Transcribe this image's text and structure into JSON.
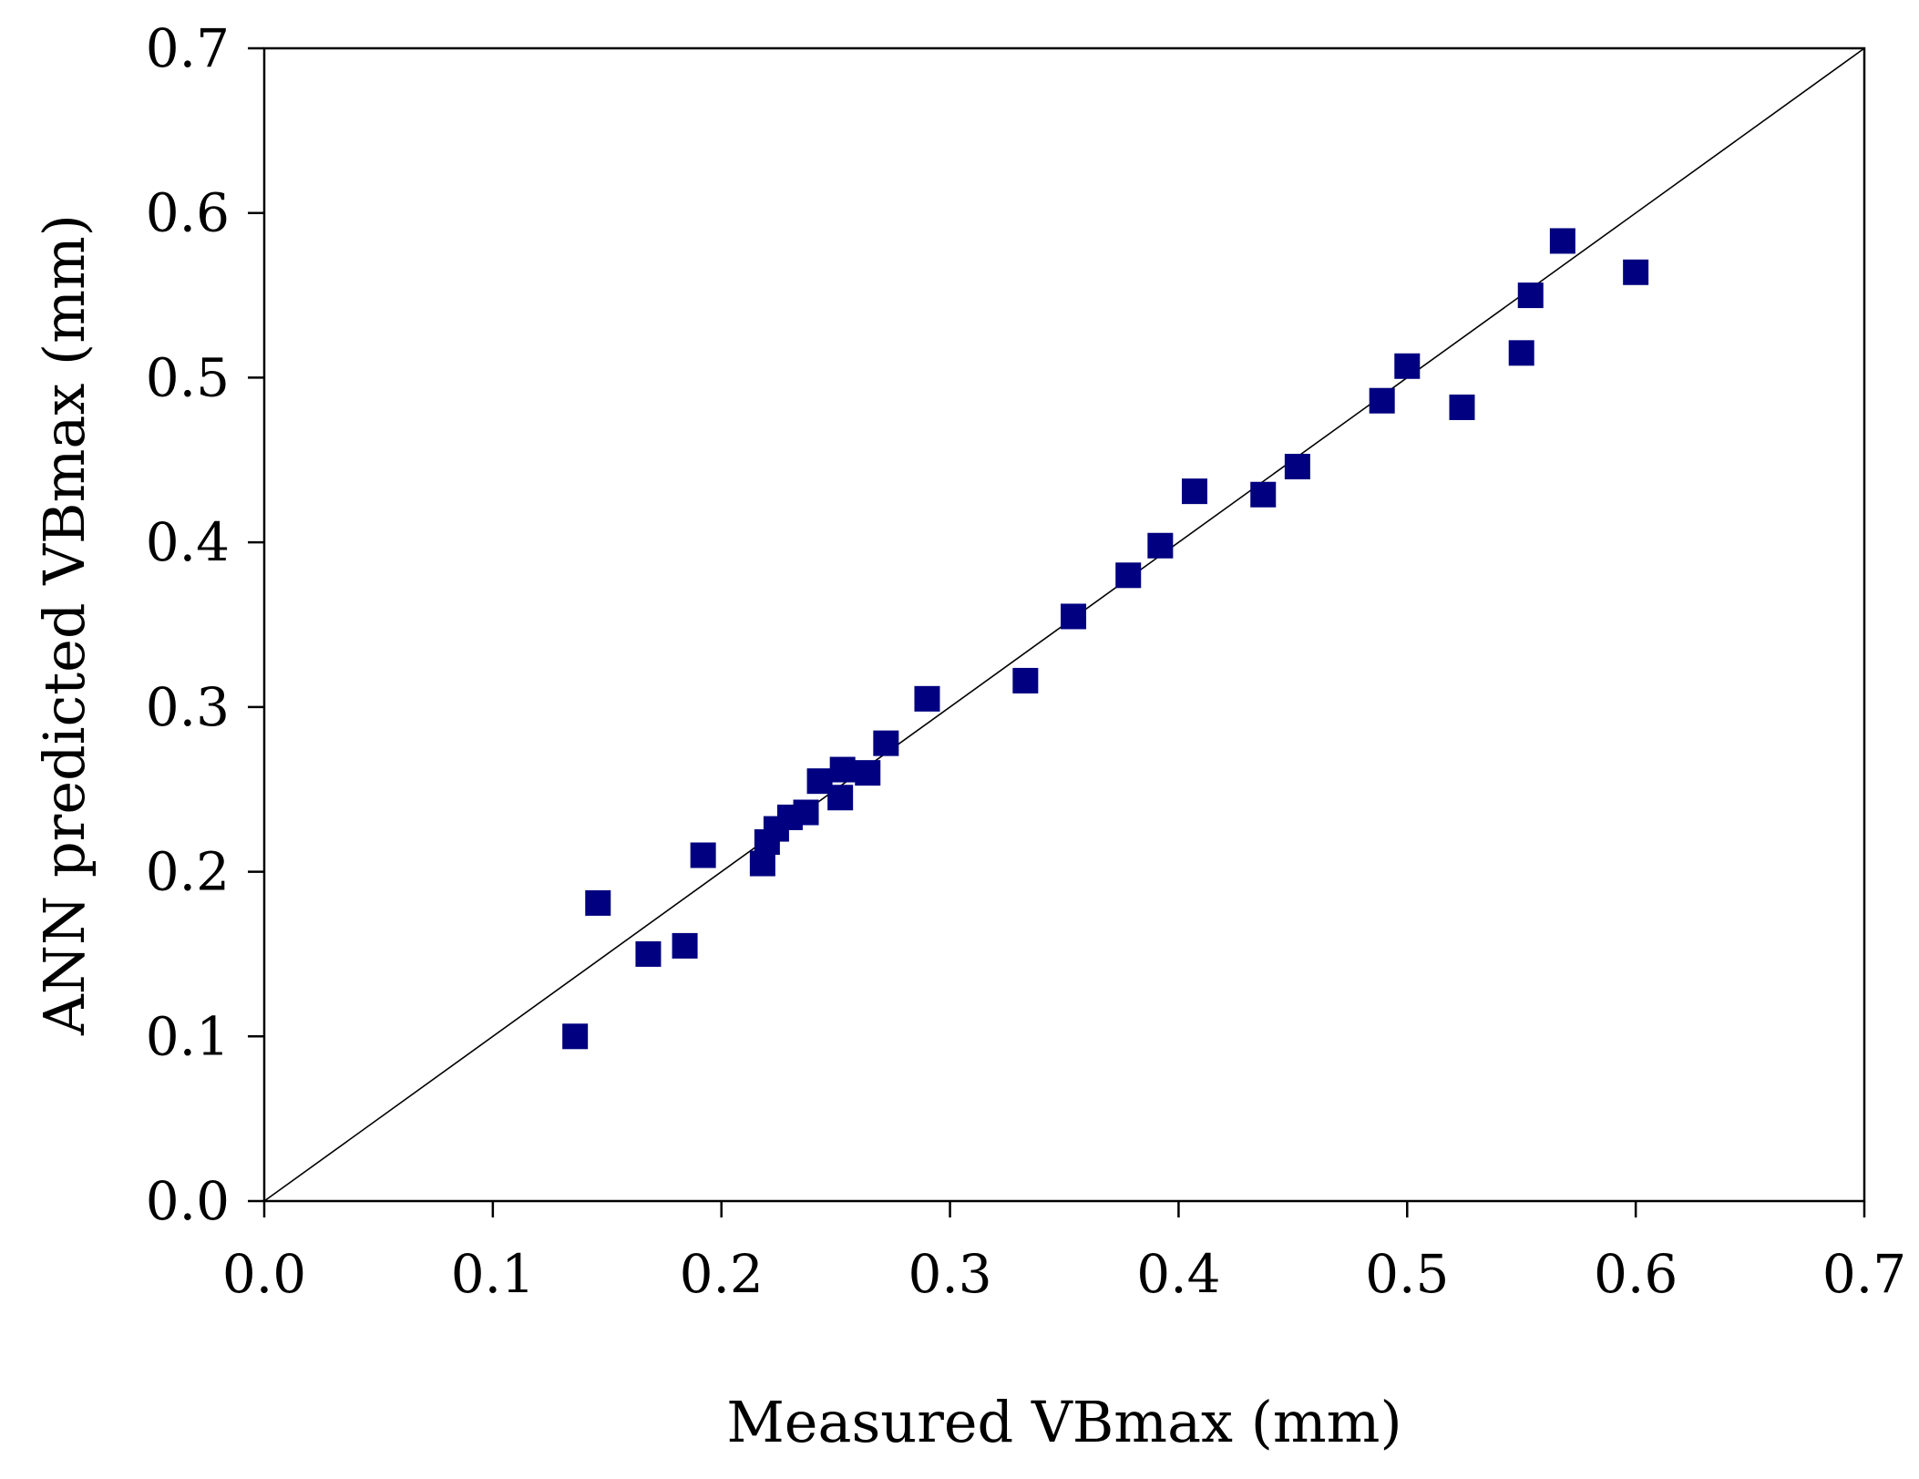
{
  "chart_data": {
    "type": "scatter",
    "title": "",
    "xlabel": "Measured VBmax (mm)",
    "ylabel": "ANN predicted VBmax (mm)",
    "xlim": [
      0.0,
      0.7
    ],
    "ylim": [
      0.0,
      0.7
    ],
    "x_ticks": [
      "0.0",
      "0.1",
      "0.2",
      "0.3",
      "0.4",
      "0.5",
      "0.6",
      "0.7"
    ],
    "y_ticks": [
      "0.0",
      "0.1",
      "0.2",
      "0.3",
      "0.4",
      "0.5",
      "0.6",
      "0.7"
    ],
    "grid": false,
    "legend": "none",
    "marker": "square",
    "marker_color": "#000080",
    "line_color": "#000000",
    "reference_line": {
      "from": [
        0.0,
        0.0
      ],
      "to": [
        0.7,
        0.7
      ]
    },
    "series": [
      {
        "points": [
          [
            0.136,
            0.1
          ],
          [
            0.146,
            0.181
          ],
          [
            0.168,
            0.15
          ],
          [
            0.184,
            0.155
          ],
          [
            0.192,
            0.21
          ],
          [
            0.218,
            0.205
          ],
          [
            0.22,
            0.218
          ],
          [
            0.224,
            0.226
          ],
          [
            0.23,
            0.233
          ],
          [
            0.237,
            0.236
          ],
          [
            0.243,
            0.255
          ],
          [
            0.252,
            0.245
          ],
          [
            0.253,
            0.262
          ],
          [
            0.264,
            0.26
          ],
          [
            0.272,
            0.278
          ],
          [
            0.29,
            0.305
          ],
          [
            0.333,
            0.316
          ],
          [
            0.354,
            0.355
          ],
          [
            0.378,
            0.38
          ],
          [
            0.392,
            0.398
          ],
          [
            0.407,
            0.431
          ],
          [
            0.437,
            0.429
          ],
          [
            0.452,
            0.446
          ],
          [
            0.489,
            0.486
          ],
          [
            0.5,
            0.507
          ],
          [
            0.524,
            0.482
          ],
          [
            0.55,
            0.515
          ],
          [
            0.554,
            0.55
          ],
          [
            0.568,
            0.583
          ],
          [
            0.6,
            0.564
          ]
        ]
      }
    ]
  }
}
